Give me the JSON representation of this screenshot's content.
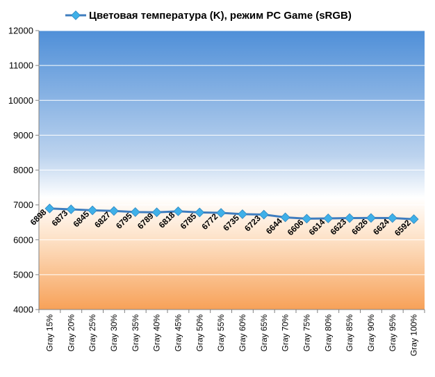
{
  "chart_data": {
    "type": "line",
    "series": [
      {
        "name": "Цветовая температура (K), режим PC Game (sRGB)",
        "color": "#3f7dbf",
        "marker_color": "#3fb0e8",
        "values": [
          6898,
          6873,
          6845,
          6827,
          6795,
          6789,
          6818,
          6785,
          6772,
          6735,
          6723,
          6644,
          6606,
          6614,
          6623,
          6626,
          6624,
          6592
        ]
      }
    ],
    "categories": [
      "Gray 15%",
      "Gray 20%",
      "Gray 25%",
      "Gray 30%",
      "Gray 35%",
      "Gray 40%",
      "Gray 45%",
      "Gray 50%",
      "Gray 55%",
      "Gray 60%",
      "Gray 65%",
      "Gray 70%",
      "Gray 75%",
      "Gray 80%",
      "Gray 85%",
      "Gray 90%",
      "Gray 95%",
      "Gray 100%"
    ],
    "ylim": [
      4000,
      12000
    ],
    "yticks": [
      4000,
      5000,
      6000,
      7000,
      8000,
      9000,
      10000,
      11000,
      12000
    ],
    "legend_position": "top",
    "grid": true,
    "background_gradient": [
      "#4f8fd8",
      "#ffffff",
      "#f7a158"
    ]
  }
}
